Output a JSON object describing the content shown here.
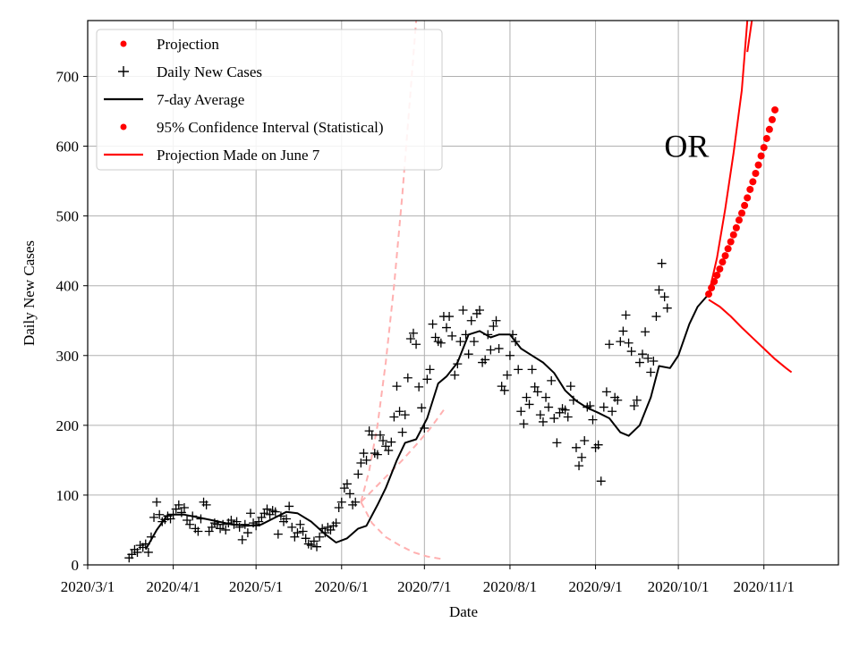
{
  "chart_data": {
    "type": "scatter",
    "title": "",
    "xlabel": "Date",
    "ylabel": "Daily New Cases",
    "xlim": [
      "2020-03-01",
      "2020-11-28"
    ],
    "ylim": [
      0,
      780
    ],
    "grid": true,
    "legend_position": "top-left",
    "x_ticks": [
      {
        "date": "2020-03-01",
        "label": "2020/3/1"
      },
      {
        "date": "2020-04-01",
        "label": "2020/4/1"
      },
      {
        "date": "2020-05-01",
        "label": "2020/5/1"
      },
      {
        "date": "2020-06-01",
        "label": "2020/6/1"
      },
      {
        "date": "2020-07-01",
        "label": "2020/7/1"
      },
      {
        "date": "2020-08-01",
        "label": "2020/8/1"
      },
      {
        "date": "2020-09-01",
        "label": "2020/9/1"
      },
      {
        "date": "2020-10-01",
        "label": "2020/10/1"
      },
      {
        "date": "2020-11-01",
        "label": "2020/11/1"
      }
    ],
    "y_ticks": [
      0,
      100,
      200,
      300,
      400,
      500,
      600,
      700
    ],
    "legend": [
      {
        "label": "Projection",
        "marker": "dot",
        "color": "#ff0000"
      },
      {
        "label": "Daily New Cases",
        "marker": "plus",
        "color": "#000000"
      },
      {
        "label": "7-day Average",
        "marker": "line",
        "color": "#000000"
      },
      {
        "label": "95% Confidence Interval (Statistical)",
        "marker": "dot",
        "color": "#ff0000"
      },
      {
        "label": "Projection Made on June 7",
        "marker": "line",
        "color": "#ff0000"
      }
    ],
    "annotation": {
      "text": "OR",
      "date": "2020-10-04",
      "value": 600
    },
    "series": {
      "daily_new_cases": {
        "name": "Daily New Cases",
        "color": "#000000",
        "start_date": "2020-03-16",
        "values": [
          10,
          15,
          22,
          18,
          28,
          25,
          30,
          18,
          40,
          68,
          90,
          72,
          62,
          65,
          70,
          66,
          72,
          80,
          86,
          75,
          82,
          64,
          58,
          70,
          52,
          48,
          66,
          90,
          86,
          48,
          54,
          60,
          58,
          52,
          58,
          50,
          60,
          64,
          58,
          62,
          54,
          36,
          58,
          46,
          74,
          60,
          56,
          62,
          68,
          74,
          80,
          72,
          78,
          76,
          44,
          70,
          62,
          66,
          84,
          54,
          40,
          46,
          58,
          48,
          38,
          30,
          28,
          34,
          26,
          40,
          52,
          46,
          54,
          50,
          56,
          60,
          82,
          90,
          110,
          116,
          102,
          86,
          90,
          130,
          146,
          160,
          150,
          192,
          186,
          160,
          158,
          186,
          178,
          170,
          164,
          176,
          212,
          256,
          220,
          190,
          215,
          268,
          324,
          332,
          316,
          255,
          225,
          196,
          266,
          280,
          345,
          326,
          320,
          318,
          356,
          340,
          356,
          328,
          272,
          288,
          320,
          365,
          330,
          302,
          350,
          320,
          360,
          365,
          290,
          294,
          330,
          308,
          342,
          350,
          310,
          256,
          250,
          272,
          300,
          330,
          320,
          280,
          220,
          202,
          240,
          230,
          280,
          255,
          248,
          215,
          205,
          240,
          226,
          264,
          210,
          175,
          218,
          224,
          222,
          212,
          256,
          236,
          168,
          142,
          154,
          178,
          226,
          228,
          208,
          168,
          172,
          120,
          226,
          248,
          316,
          220,
          240,
          236,
          320,
          335,
          358,
          318,
          306,
          228,
          236,
          290,
          302,
          334,
          296,
          276,
          292,
          356,
          394,
          432,
          384,
          368
        ]
      },
      "seven_day_average": {
        "name": "7-day Average",
        "color": "#000000",
        "start_date": "2020-03-22",
        "points": [
          [
            "2020-03-22",
            22
          ],
          [
            "2020-03-26",
            50
          ],
          [
            "2020-03-30",
            72
          ],
          [
            "2020-04-05",
            72
          ],
          [
            "2020-04-10",
            68
          ],
          [
            "2020-04-15",
            64
          ],
          [
            "2020-04-22",
            58
          ],
          [
            "2020-04-28",
            56
          ],
          [
            "2020-05-03",
            58
          ],
          [
            "2020-05-08",
            68
          ],
          [
            "2020-05-12",
            76
          ],
          [
            "2020-05-16",
            74
          ],
          [
            "2020-05-21",
            62
          ],
          [
            "2020-05-26",
            44
          ],
          [
            "2020-05-30",
            32
          ],
          [
            "2020-06-03",
            38
          ],
          [
            "2020-06-07",
            52
          ],
          [
            "2020-06-10",
            56
          ],
          [
            "2020-06-14",
            86
          ],
          [
            "2020-06-17",
            110
          ],
          [
            "2020-06-21",
            150
          ],
          [
            "2020-06-24",
            175
          ],
          [
            "2020-06-28",
            180
          ],
          [
            "2020-07-02",
            210
          ],
          [
            "2020-07-06",
            260
          ],
          [
            "2020-07-09",
            270
          ],
          [
            "2020-07-13",
            290
          ],
          [
            "2020-07-17",
            330
          ],
          [
            "2020-07-21",
            335
          ],
          [
            "2020-07-25",
            326
          ],
          [
            "2020-07-28",
            330
          ],
          [
            "2020-08-01",
            330
          ],
          [
            "2020-08-05",
            310
          ],
          [
            "2020-08-09",
            300
          ],
          [
            "2020-08-13",
            290
          ],
          [
            "2020-08-17",
            275
          ],
          [
            "2020-08-21",
            250
          ],
          [
            "2020-08-25",
            235
          ],
          [
            "2020-08-29",
            225
          ],
          [
            "2020-09-02",
            218
          ],
          [
            "2020-09-06",
            210
          ],
          [
            "2020-09-10",
            190
          ],
          [
            "2020-09-13",
            185
          ],
          [
            "2020-09-17",
            200
          ],
          [
            "2020-09-21",
            240
          ],
          [
            "2020-09-24",
            285
          ],
          [
            "2020-09-28",
            282
          ],
          [
            "2020-10-01",
            300
          ],
          [
            "2020-10-05",
            345
          ],
          [
            "2020-10-08",
            370
          ],
          [
            "2020-10-12",
            388
          ]
        ]
      },
      "projection_june7": {
        "name": "Projection Made on June 7",
        "color": "#ffb0b0",
        "dashed": true,
        "central": [
          [
            "2020-06-08",
            90
          ],
          [
            "2020-06-13",
            110
          ],
          [
            "2020-06-18",
            130
          ],
          [
            "2020-06-23",
            150
          ],
          [
            "2020-06-28",
            172
          ],
          [
            "2020-07-03",
            195
          ],
          [
            "2020-07-08",
            222
          ]
        ],
        "upper": [
          [
            "2020-06-08",
            90
          ],
          [
            "2020-06-11",
            135
          ],
          [
            "2020-06-14",
            200
          ],
          [
            "2020-06-17",
            290
          ],
          [
            "2020-06-20",
            400
          ],
          [
            "2020-06-23",
            530
          ],
          [
            "2020-06-26",
            680
          ],
          [
            "2020-06-28",
            780
          ]
        ],
        "lower": [
          [
            "2020-06-08",
            90
          ],
          [
            "2020-06-12",
            60
          ],
          [
            "2020-06-17",
            40
          ],
          [
            "2020-06-22",
            28
          ],
          [
            "2020-06-27",
            18
          ],
          [
            "2020-07-02",
            12
          ],
          [
            "2020-07-08",
            8
          ]
        ]
      },
      "projection": {
        "name": "Projection",
        "color": "#ff0000",
        "marker": "dot",
        "start_date": "2020-10-12",
        "values": [
          388,
          397,
          406,
          415,
          424,
          434,
          443,
          453,
          463,
          473,
          483,
          494,
          504,
          515,
          526,
          538,
          549,
          561,
          573,
          586,
          598,
          611,
          624,
          638,
          652
        ]
      },
      "confidence_interval": {
        "name": "95% Confidence Interval (Statistical)",
        "color": "#ff0000",
        "upper": [
          [
            "2020-10-12",
            388
          ],
          [
            "2020-10-15",
            440
          ],
          [
            "2020-10-18",
            510
          ],
          [
            "2020-10-21",
            590
          ],
          [
            "2020-10-24",
            680
          ],
          [
            "2020-10-26",
            780
          ]
        ],
        "upper_far": [
          [
            "2020-10-26",
            735
          ],
          [
            "2020-10-28",
            790
          ]
        ],
        "lower": [
          [
            "2020-10-12",
            380
          ],
          [
            "2020-10-16",
            370
          ],
          [
            "2020-10-20",
            356
          ],
          [
            "2020-10-24",
            340
          ],
          [
            "2020-10-28",
            325
          ],
          [
            "2020-11-01",
            310
          ],
          [
            "2020-11-05",
            295
          ],
          [
            "2020-11-09",
            282
          ],
          [
            "2020-11-11",
            276
          ]
        ]
      }
    }
  }
}
